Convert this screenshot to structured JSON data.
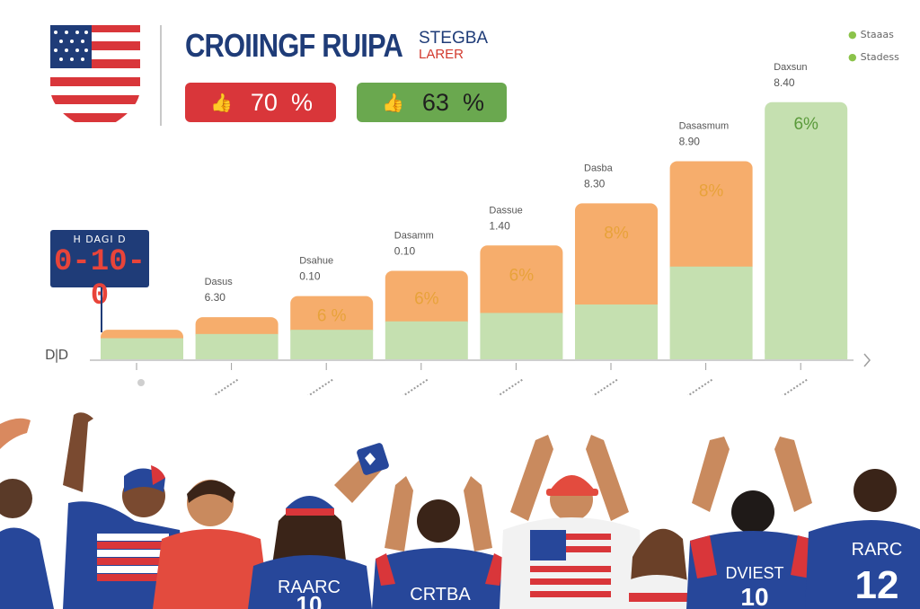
{
  "header": {
    "title": "CROIINGF RUIPA",
    "subtitle_top": "STEGBA",
    "subtitle_bottom": "LARER"
  },
  "stats": [
    {
      "value": "70",
      "unit": "%",
      "color": "#d9363a",
      "icon": "thumbs-up-icon"
    },
    {
      "value": "63",
      "unit": "%",
      "color": "#6aa84f",
      "icon": "thumbs-up-icon"
    }
  ],
  "legend": {
    "items": [
      "Staaas",
      "Stadess"
    ],
    "colors": [
      "#8bc34a",
      "#8bc34a"
    ]
  },
  "scoreboard": {
    "label": "H DAGI D",
    "score": "0-10-0"
  },
  "fans": {
    "jerseys": [
      "RAARC",
      "CRTBA",
      "DVIEST",
      "RARC"
    ],
    "numbers": [
      "10",
      "10",
      "12"
    ]
  },
  "chart_data": {
    "type": "bar",
    "stacked": true,
    "colors": {
      "base": "#c5e0b0",
      "top": "#f6ad6c"
    },
    "ytick_label": "D|D",
    "categories": [
      "",
      "",
      "",
      "",
      "",
      "",
      "",
      ""
    ],
    "series": [
      {
        "values": [
          5,
          6,
          7,
          9,
          11,
          13,
          22,
          61
        ]
      },
      {
        "values": [
          2,
          4,
          8,
          12,
          16,
          24,
          25,
          0
        ]
      }
    ],
    "ylim": [
      0,
      65
    ],
    "bar_labels": [
      "",
      "",
      "6 %",
      "6%",
      "6%",
      "8%",
      "8%",
      "6%"
    ],
    "bar_label_colors": [
      "#e8a23a",
      "#e8a23a",
      "#e8a23a",
      "#e8a23a",
      "#e8a23a",
      "#e8a23a",
      "#e8a23a",
      "#5a9a3a"
    ],
    "annotations": [
      {
        "name": "",
        "value": ""
      },
      {
        "name": "Dasus",
        "value": "6.30"
      },
      {
        "name": "Dsahue",
        "value": "0.10"
      },
      {
        "name": "Dasamm",
        "value": "0.10"
      },
      {
        "name": "Dassue",
        "value": "1.40"
      },
      {
        "name": "Dasba",
        "value": "8.30"
      },
      {
        "name": "Dasasmum",
        "value": "8.90"
      },
      {
        "name": "Daxsun",
        "value": "8.40"
      }
    ],
    "grid": false,
    "legend_position": "top-right"
  }
}
